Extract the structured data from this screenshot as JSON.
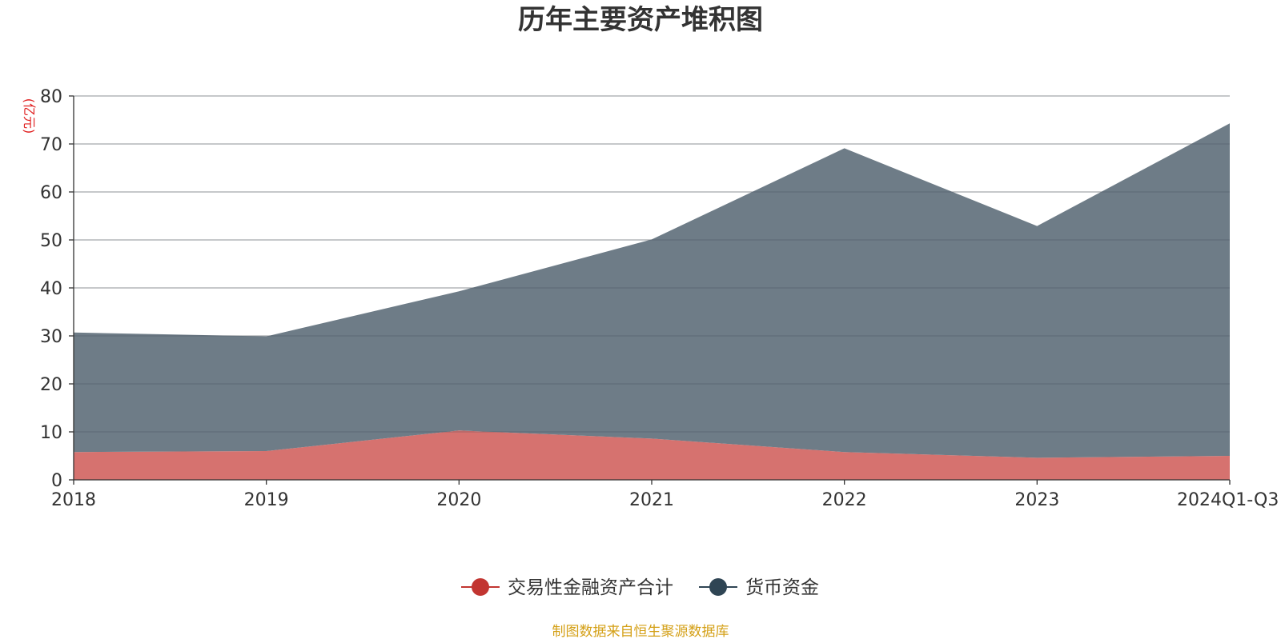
{
  "chart_data": {
    "type": "area",
    "stacked": true,
    "title": "历年主要资产堆积图",
    "ylabel": "(亿元)",
    "xlabel": "",
    "categories": [
      "2018",
      "2019",
      "2020",
      "2021",
      "2022",
      "2023",
      "2024Q1-Q3"
    ],
    "ylim": [
      0,
      80
    ],
    "yticks": [
      0,
      10,
      20,
      30,
      40,
      50,
      60,
      70,
      80
    ],
    "grid": true,
    "legend_position": "bottom-center",
    "series": [
      {
        "name": "交易性金融资产合计",
        "values": [
          5.8,
          6.0,
          10.3,
          8.6,
          5.8,
          4.6,
          5.0
        ],
        "color": "#d6726f",
        "marker_color": "#c23531"
      },
      {
        "name": "货币资金",
        "values": [
          24.9,
          23.9,
          29.0,
          41.5,
          63.3,
          48.3,
          69.3
        ],
        "color": "#6e7c87",
        "marker_color": "#2f4554"
      }
    ],
    "source_note": "制图数据来自恒生聚源数据库",
    "colors": {
      "title": "#333333",
      "axis": "#333333",
      "grid": "#cccccc",
      "ylabel": "#e02020",
      "source": "#d4a017"
    }
  }
}
